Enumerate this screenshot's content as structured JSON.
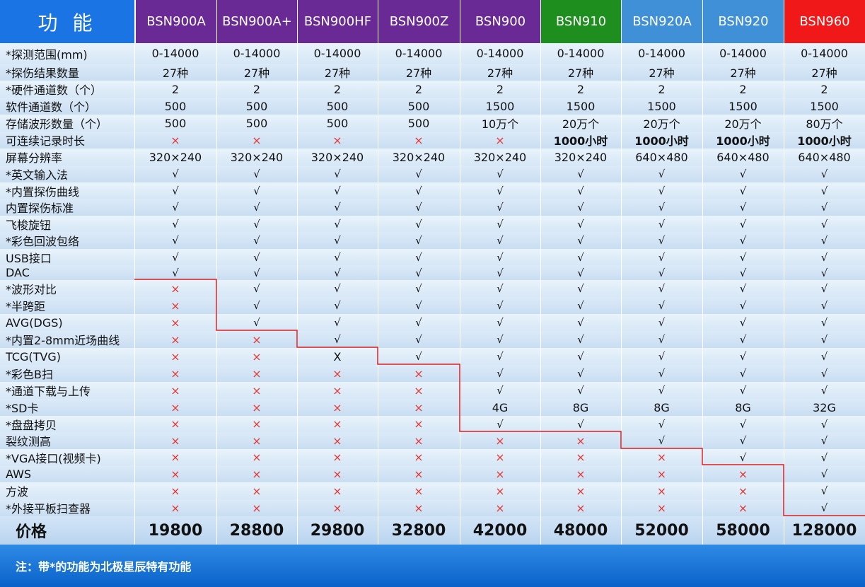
{
  "header": {
    "feature_label": "功 能",
    "models": [
      {
        "name": "BSN900A",
        "color": "#6a2a95"
      },
      {
        "name": "BSN900A+",
        "color": "#6a2a95"
      },
      {
        "name": "BSN900HF",
        "color": "#6a2a95"
      },
      {
        "name": "BSN900Z",
        "color": "#6a2a95"
      },
      {
        "name": "BSN900",
        "color": "#6a2a95"
      },
      {
        "name": "BSN910",
        "color": "#1e8f1e"
      },
      {
        "name": "BSN920A",
        "color": "#3f90d6"
      },
      {
        "name": "BSN920",
        "color": "#3f90d6"
      },
      {
        "name": "BSN960",
        "color": "#f01818"
      }
    ],
    "feature_header_color": "#1a74e3"
  },
  "rows": [
    {
      "label": "*探测范围(mm)",
      "values": [
        "0-14000",
        "0-14000",
        "0-14000",
        "0-14000",
        "0-14000",
        "0-14000",
        "0-14000",
        "0-14000",
        "0-14000"
      ]
    },
    {
      "label": "*探伤结果数量",
      "values": [
        "27种",
        "27种",
        "27种",
        "27种",
        "27种",
        "27种",
        "27种",
        "27种",
        "27种"
      ]
    },
    {
      "label": "*硬件通道数（个）",
      "values": [
        "2",
        "2",
        "2",
        "2",
        "2",
        "2",
        "2",
        "2",
        "2"
      ]
    },
    {
      "label": " 软件通道数（个）",
      "values": [
        "500",
        "500",
        "500",
        "500",
        "1500",
        "1500",
        "1500",
        "1500",
        "1500"
      ]
    },
    {
      "label": " 存储波形数量（个）",
      "values": [
        "500",
        "500",
        "500",
        "500",
        "10万个",
        "20万个",
        "20万个",
        "20万个",
        "80万个"
      ]
    },
    {
      "label": " 可连续记录时长",
      "values": [
        "×",
        "×",
        "×",
        "×",
        "×",
        "1000小时",
        "1000小时",
        "1000小时",
        "1000小时"
      ]
    },
    {
      "label": " 屏幕分辨率",
      "values": [
        "320×240",
        "320×240",
        "320×240",
        "320×240",
        "320×240",
        "320×240",
        "640×480",
        "640×480",
        "640×480"
      ]
    },
    {
      "label": "*英文输入法",
      "values": [
        "√",
        "√",
        "√",
        "√",
        "√",
        "√",
        "√",
        "√",
        "√"
      ]
    },
    {
      "label": "*内置探伤曲线",
      "values": [
        "√",
        "√",
        "√",
        "√",
        "√",
        "√",
        "√",
        "√",
        "√"
      ]
    },
    {
      "label": " 内置探伤标准",
      "values": [
        "√",
        "√",
        "√",
        "√",
        "√",
        "√",
        "√",
        "√",
        "√"
      ]
    },
    {
      "label": " 飞梭旋钮",
      "values": [
        "√",
        "√",
        "√",
        "√",
        "√",
        "√",
        "√",
        "√",
        "√"
      ]
    },
    {
      "label": "*彩色回波包络",
      "values": [
        "√",
        "√",
        "√",
        "√",
        "√",
        "√",
        "√",
        "√",
        "√"
      ]
    },
    {
      "label": " USB接口",
      "values": [
        "√",
        "√",
        "√",
        "√",
        "√",
        "√",
        "√",
        "√",
        "√"
      ]
    },
    {
      "label": " DAC",
      "values": [
        "√",
        "√",
        "√",
        "√",
        "√",
        "√",
        "√",
        "√",
        "√"
      ]
    },
    {
      "label": "*波形对比",
      "values": [
        "×",
        "√",
        "√",
        "√",
        "√",
        "√",
        "√",
        "√",
        "√"
      ]
    },
    {
      "label": "*半跨距",
      "values": [
        "×",
        "√",
        "√",
        "√",
        "√",
        "√",
        "√",
        "√",
        "√"
      ]
    },
    {
      "label": " AVG(DGS)",
      "values": [
        "×",
        "√",
        "√",
        "√",
        "√",
        "√",
        "√",
        "√",
        "√"
      ]
    },
    {
      "label": "*内置2-8mm近场曲线",
      "values": [
        "×",
        "×",
        "√",
        "√",
        "√",
        "√",
        "√",
        "√",
        "√"
      ]
    },
    {
      "label": "TCG(TVG)",
      "values": [
        "×",
        "×",
        "X",
        "√",
        "√",
        "√",
        "√",
        "√",
        "√"
      ]
    },
    {
      "label": "*彩色B扫",
      "values": [
        "×",
        "×",
        "×",
        "×",
        "√",
        "√",
        "√",
        "√",
        "√"
      ]
    },
    {
      "label": "*通道下载与上传",
      "values": [
        "×",
        "×",
        "×",
        "×",
        "√",
        "√",
        "√",
        "√",
        "√"
      ]
    },
    {
      "label": "*SD卡",
      "values": [
        "×",
        "×",
        "×",
        "×",
        "4G",
        "8G",
        "8G",
        "8G",
        "32G"
      ]
    },
    {
      "label": "*盘盘拷贝",
      "values": [
        "×",
        "×",
        "×",
        "×",
        "√",
        "√",
        "√",
        "√",
        "√"
      ]
    },
    {
      "label": " 裂纹测高",
      "values": [
        "×",
        "×",
        "×",
        "×",
        "×",
        "×",
        "√",
        "√",
        "√"
      ]
    },
    {
      "label": "*VGA接口(视频卡)",
      "values": [
        "×",
        "×",
        "×",
        "×",
        "×",
        "×",
        "×",
        "√",
        "√"
      ]
    },
    {
      "label": " AWS",
      "values": [
        "×",
        "×",
        "×",
        "×",
        "×",
        "×",
        "×",
        "×",
        "√"
      ]
    },
    {
      "label": " 方波",
      "values": [
        "×",
        "×",
        "×",
        "×",
        "×",
        "×",
        "×",
        "×",
        "√"
      ]
    },
    {
      "label": "*外接平板扫查器",
      "values": [
        "×",
        "×",
        "×",
        "×",
        "×",
        "×",
        "×",
        "×",
        "√"
      ]
    }
  ],
  "price_row": {
    "label": "价格",
    "values": [
      "19800",
      "28800",
      "29800",
      "32800",
      "42000",
      "48000",
      "52000",
      "58000",
      "128000"
    ]
  },
  "footer": {
    "note": "注：带*的功能为北极星辰特有功能"
  },
  "colors": {
    "cross": "#e53935",
    "step_line": "#e02020",
    "footer": "#0a62c9"
  }
}
